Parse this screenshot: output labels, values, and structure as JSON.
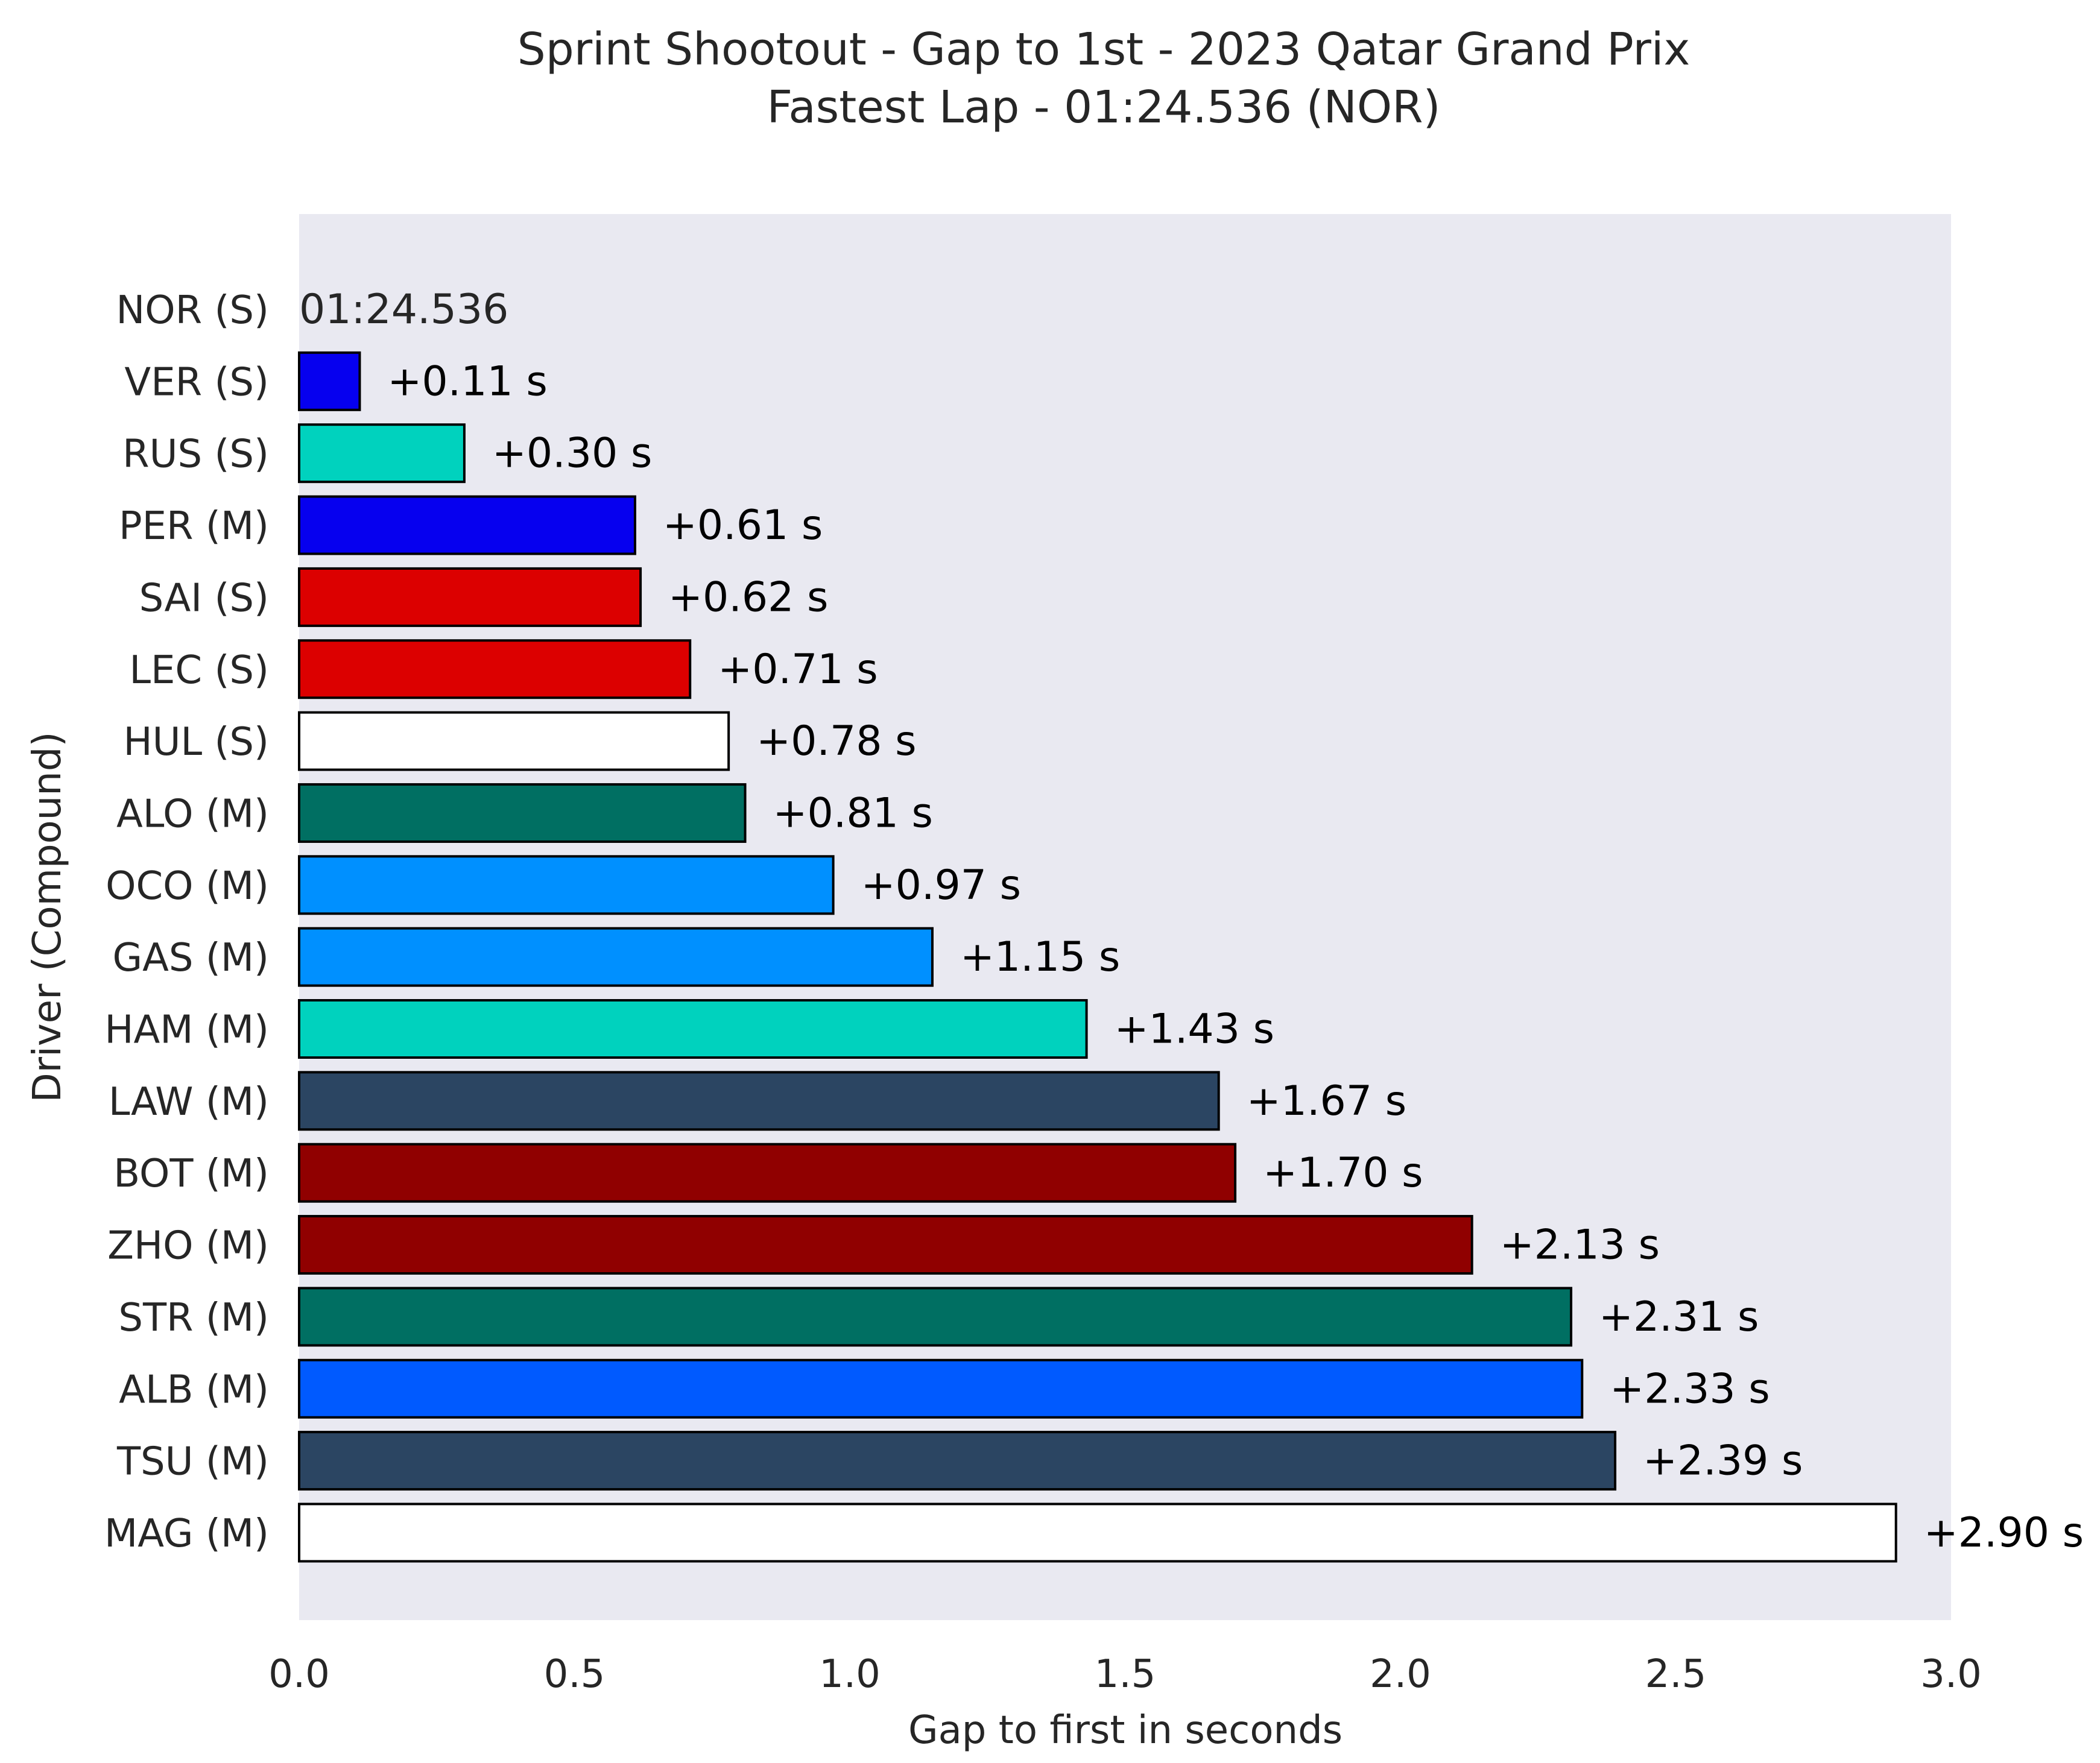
{
  "chart_data": {
    "type": "bar",
    "orientation": "horizontal",
    "title": "Sprint Shootout - Gap to 1st - 2023 Qatar Grand Prix",
    "subtitle": "Fastest Lap - 01:24.536 (NOR)",
    "xlabel": "Gap to first in seconds",
    "ylabel": "Driver (Compound)",
    "xlim": [
      0,
      3.0
    ],
    "xticks": [
      "0.0",
      "0.5",
      "1.0",
      "1.5",
      "2.0",
      "2.5",
      "3.0"
    ],
    "grid": false,
    "background_color": "#e9e9f1",
    "bar_edge_color": "#000000",
    "fastest_lap_label": "01:24.536",
    "bars": [
      {
        "driver": "NOR (S)",
        "value": 0.0,
        "label": "01:24.536",
        "color": "#ff8700"
      },
      {
        "driver": "VER (S)",
        "value": 0.11,
        "label": "+0.11 s",
        "color": "#0600ef"
      },
      {
        "driver": "RUS (S)",
        "value": 0.3,
        "label": "+0.30 s",
        "color": "#00d2be"
      },
      {
        "driver": "PER (M)",
        "value": 0.61,
        "label": "+0.61 s",
        "color": "#0600ef"
      },
      {
        "driver": "SAI (S)",
        "value": 0.62,
        "label": "+0.62 s",
        "color": "#dc0000"
      },
      {
        "driver": "LEC (S)",
        "value": 0.71,
        "label": "+0.71 s",
        "color": "#dc0000"
      },
      {
        "driver": "HUL (S)",
        "value": 0.78,
        "label": "+0.78 s",
        "color": "#ffffff"
      },
      {
        "driver": "ALO (M)",
        "value": 0.81,
        "label": "+0.81 s",
        "color": "#006f62"
      },
      {
        "driver": "OCO (M)",
        "value": 0.97,
        "label": "+0.97 s",
        "color": "#0090ff"
      },
      {
        "driver": "GAS (M)",
        "value": 1.15,
        "label": "+1.15 s",
        "color": "#0090ff"
      },
      {
        "driver": "HAM (M)",
        "value": 1.43,
        "label": "+1.43 s",
        "color": "#00d2be"
      },
      {
        "driver": "LAW (M)",
        "value": 1.67,
        "label": "+1.67 s",
        "color": "#2b4562"
      },
      {
        "driver": "BOT (M)",
        "value": 1.7,
        "label": "+1.70 s",
        "color": "#900000"
      },
      {
        "driver": "ZHO (M)",
        "value": 2.13,
        "label": "+2.13 s",
        "color": "#900000"
      },
      {
        "driver": "STR (M)",
        "value": 2.31,
        "label": "+2.31 s",
        "color": "#006f62"
      },
      {
        "driver": "ALB (M)",
        "value": 2.33,
        "label": "+2.33 s",
        "color": "#005aff"
      },
      {
        "driver": "TSU (M)",
        "value": 2.39,
        "label": "+2.39 s",
        "color": "#2b4562"
      },
      {
        "driver": "MAG (M)",
        "value": 2.9,
        "label": "+2.90 s",
        "color": "#ffffff"
      }
    ]
  }
}
